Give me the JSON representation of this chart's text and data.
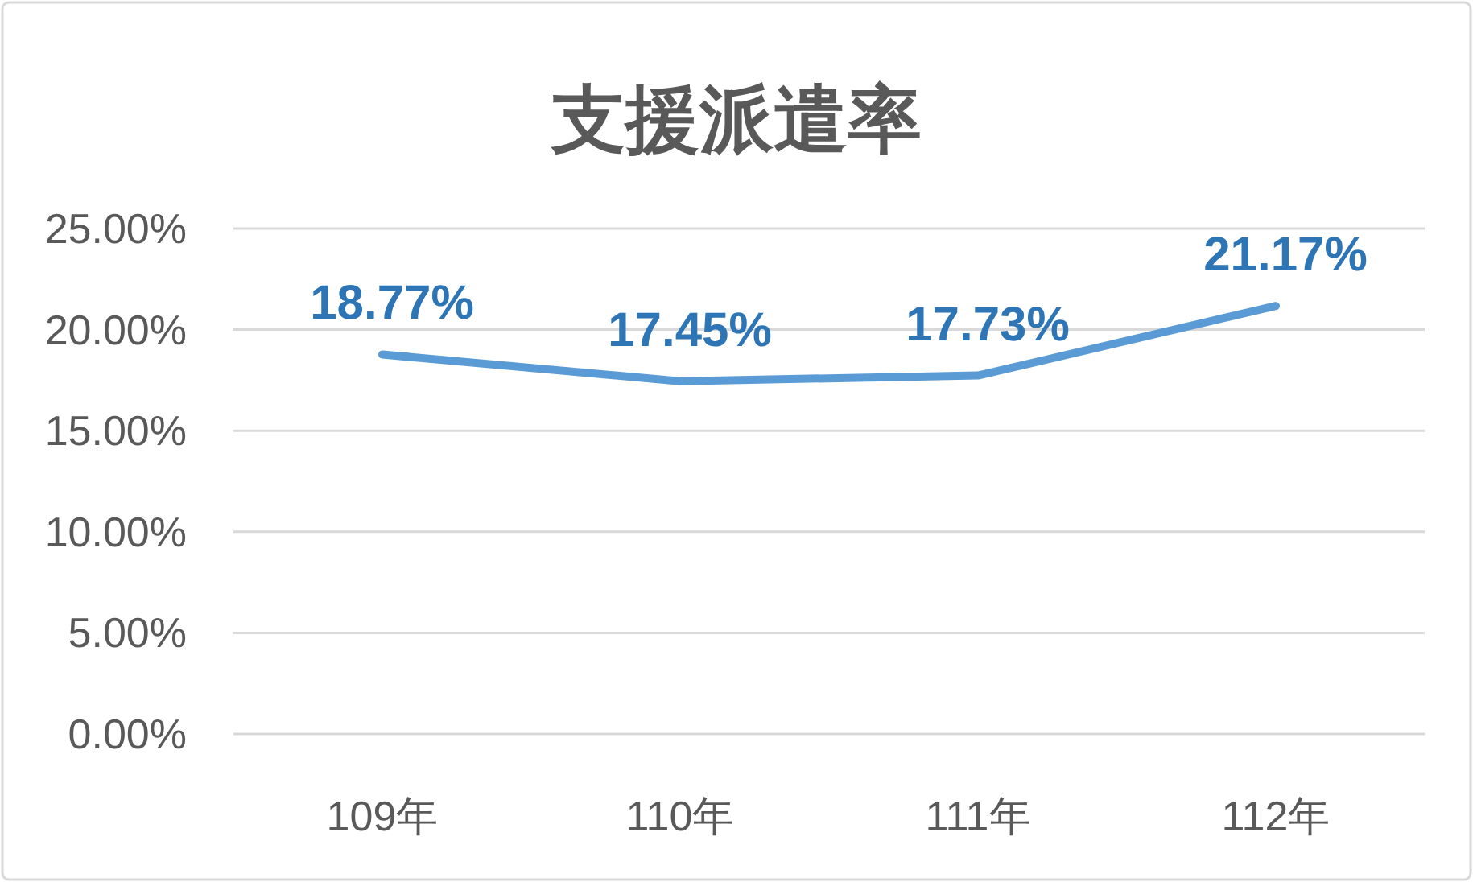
{
  "chart_data": {
    "type": "line",
    "title": "支援派遣率",
    "categories": [
      "109年",
      "110年",
      "111年",
      "112年"
    ],
    "series": [
      {
        "color": "#5b9bd5",
        "values": [
          18.77,
          17.45,
          17.73,
          21.17
        ],
        "value_labels": [
          "18.77%",
          "17.45%",
          "17.73%",
          "21.17%"
        ]
      }
    ],
    "ylim": [
      0,
      25
    ],
    "yticks": [
      {
        "value": 0,
        "label": "0.00%"
      },
      {
        "value": 5,
        "label": "5.00%"
      },
      {
        "value": 10,
        "label": "10.00%"
      },
      {
        "value": 15,
        "label": "15.00%"
      },
      {
        "value": 20,
        "label": "20.00%"
      },
      {
        "value": 25,
        "label": "25.00%"
      }
    ],
    "grid": "y"
  }
}
